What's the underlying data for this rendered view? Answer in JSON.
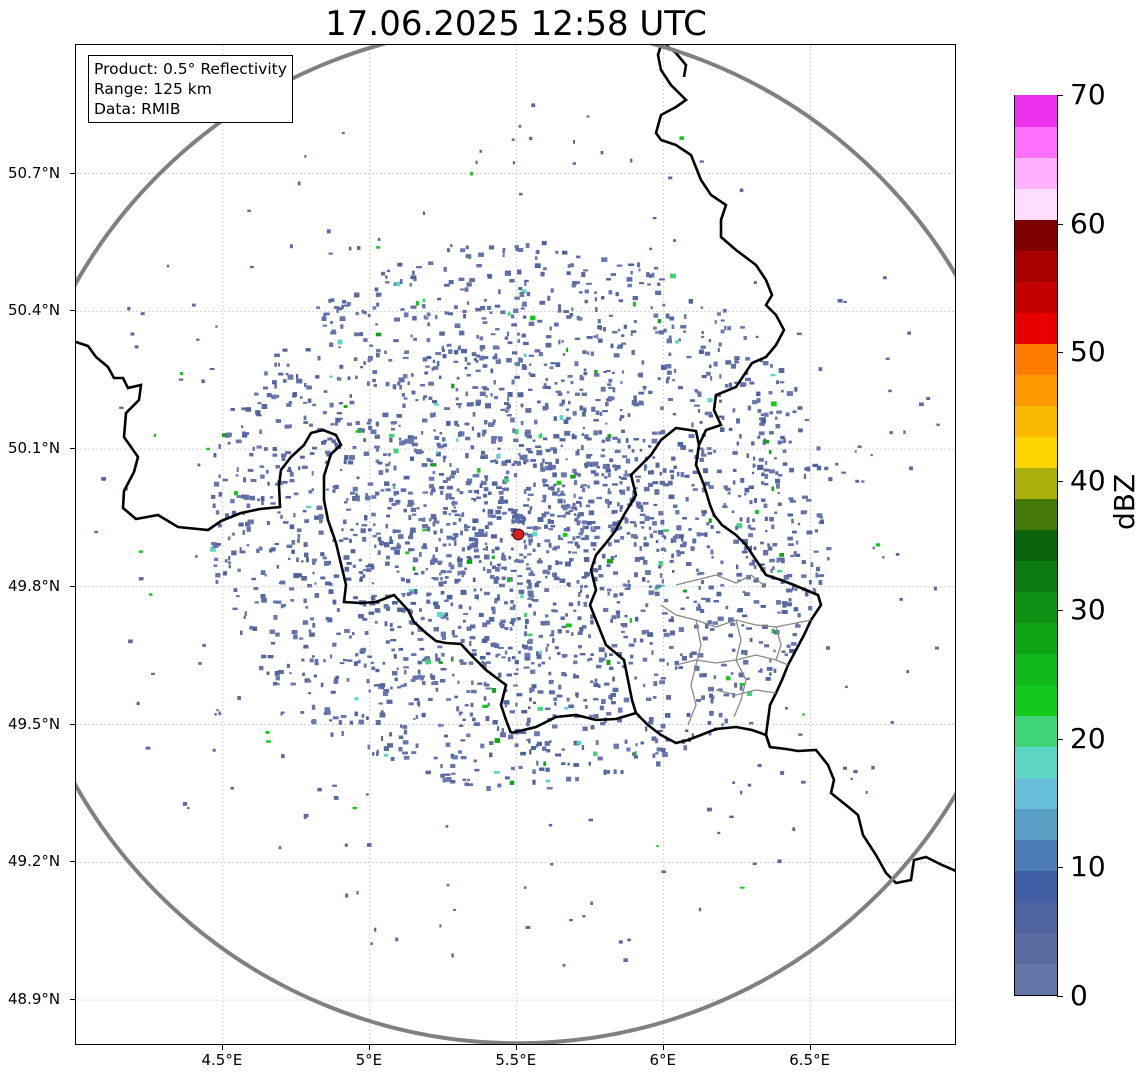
{
  "title": "17.06.2025 12:58 UTC",
  "info": {
    "product": "Product: 0.5° Reflectivity",
    "range": "Range: 125 km",
    "source": "Data: RMIB"
  },
  "map": {
    "lon_range": [
      4.0,
      7.0
    ],
    "lat_range": [
      48.8,
      50.98
    ],
    "lat_ticks": [
      {
        "value": 50.7,
        "label": "50.7°N"
      },
      {
        "value": 50.4,
        "label": "50.4°N"
      },
      {
        "value": 50.1,
        "label": "50.1°N"
      },
      {
        "value": 49.8,
        "label": "49.8°N"
      },
      {
        "value": 49.5,
        "label": "49.5°N"
      },
      {
        "value": 49.2,
        "label": "49.2°N"
      },
      {
        "value": 48.9,
        "label": "48.9°N"
      }
    ],
    "lon_ticks": [
      {
        "value": 4.5,
        "label": "4.5°E"
      },
      {
        "value": 5.0,
        "label": "5°E"
      },
      {
        "value": 5.5,
        "label": "5.5°E"
      },
      {
        "value": 6.0,
        "label": "6°E"
      },
      {
        "value": 6.5,
        "label": "6.5°E"
      }
    ],
    "radar_site": {
      "lon": 5.505,
      "lat": 49.914,
      "color": "#e01b1b"
    },
    "range_ring_km": 125,
    "ring_color": "#808080",
    "border_color": "#000000",
    "grid": true
  },
  "colorbar": {
    "label": "dBZ",
    "min": 0,
    "max": 70,
    "step": 2.5,
    "colors": [
      "#6675a8",
      "#5a6aa0",
      "#4f63a0",
      "#425fa6",
      "#4b7bb3",
      "#5b9ec6",
      "#68c0dc",
      "#5ed6c4",
      "#3fd47a",
      "#12c81a",
      "#10b81a",
      "#0fa414",
      "#0e9012",
      "#0d7c10",
      "#0a650c",
      "#457a0a",
      "#a9b00c",
      "#fcd600",
      "#fdb800",
      "#fd9a00",
      "#fe7c00",
      "#e60000",
      "#c40000",
      "#a80000",
      "#7e0000",
      "#ffddff",
      "#ffb0ff",
      "#ff70ff",
      "#ee30ee"
    ],
    "ticks": [
      {
        "value": 0,
        "label": "0"
      },
      {
        "value": 10,
        "label": "10"
      },
      {
        "value": 20,
        "label": "20"
      },
      {
        "value": 30,
        "label": "30"
      },
      {
        "value": 40,
        "label": "40"
      },
      {
        "value": 50,
        "label": "50"
      },
      {
        "value": 60,
        "label": "60"
      },
      {
        "value": 70,
        "label": "70"
      }
    ]
  }
}
